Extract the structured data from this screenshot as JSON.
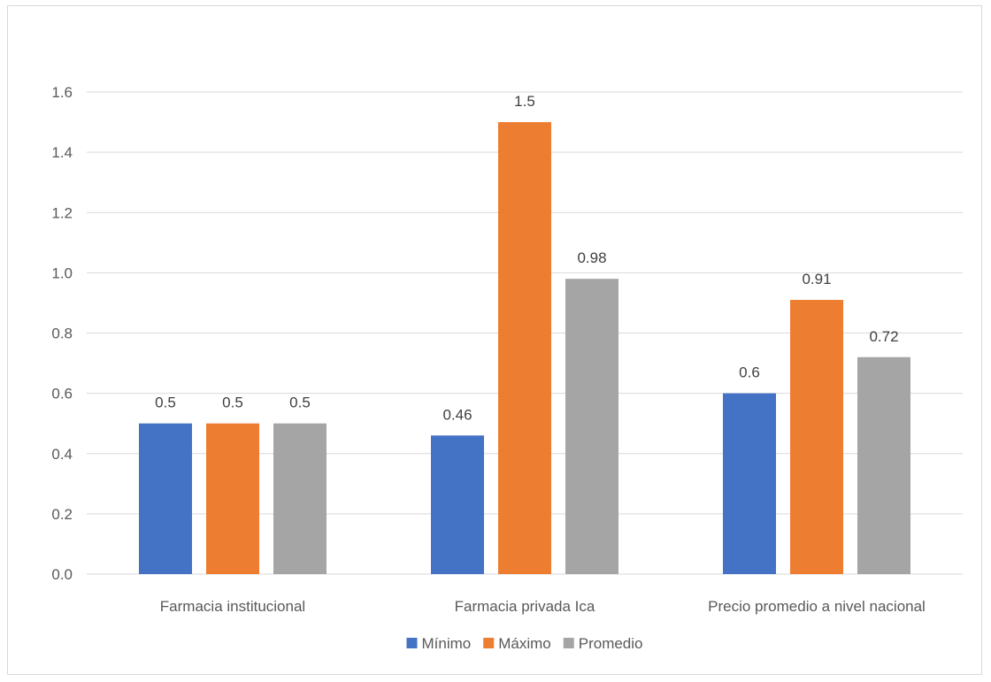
{
  "chart_data": {
    "type": "bar",
    "categories": [
      "Farmacia institucional",
      "Farmacia privada Ica",
      "Precio promedio a nivel nacional"
    ],
    "series": [
      {
        "name": "Mínimo",
        "color": "#4472c4",
        "values": [
          0.5,
          0.46,
          0.6
        ],
        "labels": [
          "0.5",
          "0.46",
          "0.6"
        ]
      },
      {
        "name": "Máximo",
        "color": "#ed7d31",
        "values": [
          0.5,
          1.5,
          0.91
        ],
        "labels": [
          "0.5",
          "1.5",
          "0.91"
        ]
      },
      {
        "name": "Promedio",
        "color": "#a5a5a5",
        "values": [
          0.5,
          0.98,
          0.72
        ],
        "labels": [
          "0.5",
          "0.98",
          "0.72"
        ]
      }
    ],
    "yticks": [
      "0.0",
      "0.2",
      "0.4",
      "0.6",
      "0.8",
      "1.0",
      "1.2",
      "1.4",
      "1.6"
    ],
    "ylim": [
      0,
      1.6
    ],
    "grid": true,
    "legend": "bottom"
  }
}
